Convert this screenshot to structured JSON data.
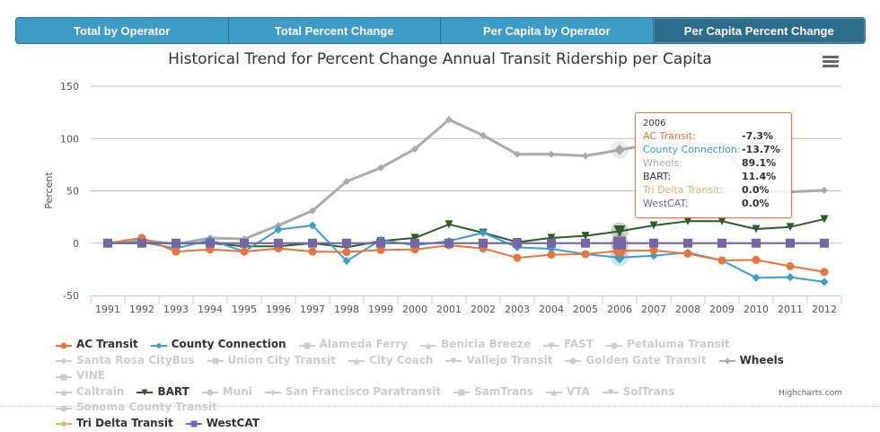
{
  "tabs": [
    {
      "label": "Total by Operator",
      "active": false
    },
    {
      "label": "Total Percent Change",
      "active": false
    },
    {
      "label": "Per Capita by Operator",
      "active": false
    },
    {
      "label": "Per Capita Percent Change",
      "active": true
    }
  ],
  "menu_icon": "hamburger-menu-icon",
  "credits": "Highcharts.com",
  "tooltip": {
    "header": "2006",
    "rows": [
      {
        "name": "AC Transit:",
        "value": "-7.3%",
        "color": "#e8743b"
      },
      {
        "name": "County Connection:",
        "value": "-13.7%",
        "color": "#3b9ed1"
      },
      {
        "name": "Wheels:",
        "value": "89.1%",
        "color": "#aaaaaa"
      },
      {
        "name": "BART:",
        "value": "11.4%",
        "color": "#333333"
      },
      {
        "name": "Tri Delta Transit:",
        "value": "0.0%",
        "color": "#d9b36c"
      },
      {
        "name": "WestCAT:",
        "value": "0.0%",
        "color": "#7366a6"
      }
    ]
  },
  "chart_data": {
    "type": "line",
    "title": "Historical Trend for Percent Change Annual Transit Ridership per Capita",
    "xlabel": "",
    "ylabel": "Percent",
    "ylim": [
      -50,
      150
    ],
    "yticks": [
      -50,
      0,
      50,
      100,
      150
    ],
    "grid": true,
    "legend_position": "bottom",
    "categories": [
      "1991",
      "1992",
      "1993",
      "1994",
      "1995",
      "1996",
      "1997",
      "1998",
      "1999",
      "2000",
      "2001",
      "2002",
      "2003",
      "2004",
      "2005",
      "2006",
      "2007",
      "2008",
      "2009",
      "2010",
      "2011",
      "2012"
    ],
    "highlighted_category": "2006",
    "series": [
      {
        "name": "AC Transit",
        "color": "#e8743b",
        "marker": "circle",
        "visible": true,
        "values": [
          0,
          5,
          -8,
          -6,
          -8,
          -5,
          -8,
          -8.5,
          -6.5,
          -6,
          -2,
          -5,
          -14,
          -11,
          -10.5,
          -7.3,
          -7,
          -10,
          -16.5,
          -16,
          -22,
          -27.5
        ]
      },
      {
        "name": "County Connection",
        "color": "#3b9ed1",
        "marker": "diamond",
        "visible": true,
        "values": [
          0,
          1,
          -5,
          3,
          -8,
          13,
          17,
          -17,
          3,
          -2,
          2,
          10,
          -4,
          -5.5,
          -10.5,
          -13.7,
          -12,
          -9,
          -16.5,
          -33,
          -32.5,
          -37
        ]
      },
      {
        "name": "Alameda Ferry",
        "color": "#cccccc",
        "marker": "square",
        "visible": false,
        "values": []
      },
      {
        "name": "Benicia Breeze",
        "color": "#cccccc",
        "marker": "triangle",
        "visible": false,
        "values": []
      },
      {
        "name": "FAST",
        "color": "#cccccc",
        "marker": "triangle-down",
        "visible": false,
        "values": []
      },
      {
        "name": "Petaluma Transit",
        "color": "#cccccc",
        "marker": "circle",
        "visible": false,
        "values": []
      },
      {
        "name": "Santa Rosa CityBus",
        "color": "#cccccc",
        "marker": "diamond",
        "visible": false,
        "values": []
      },
      {
        "name": "Union City Transit",
        "color": "#cccccc",
        "marker": "square",
        "visible": false,
        "values": []
      },
      {
        "name": "City Coach",
        "color": "#cccccc",
        "marker": "triangle",
        "visible": false,
        "values": []
      },
      {
        "name": "Vallejo Transit",
        "color": "#cccccc",
        "marker": "triangle-down",
        "visible": false,
        "values": []
      },
      {
        "name": "Golden Gate Transit",
        "color": "#cccccc",
        "marker": "circle",
        "visible": false,
        "values": []
      },
      {
        "name": "Wheels",
        "color": "#aaaaaa",
        "marker": "diamond",
        "visible": true,
        "line_width": 3,
        "values": [
          0,
          3,
          -1,
          5,
          4,
          17,
          31,
          59,
          72,
          90,
          118,
          103,
          85,
          85,
          83.5,
          89.1,
          95,
          96,
          95,
          50,
          49,
          50.5
        ]
      },
      {
        "name": "VINE",
        "color": "#cccccc",
        "marker": "square",
        "visible": false,
        "values": []
      },
      {
        "name": "Caltrain",
        "color": "#cccccc",
        "marker": "triangle",
        "visible": false,
        "values": []
      },
      {
        "name": "BART",
        "color": "#2f5a2a",
        "marker": "triangle-down",
        "visible": true,
        "values": [
          0,
          0,
          0,
          0,
          -3,
          -3,
          0,
          -4,
          2,
          5,
          18,
          10,
          1,
          5,
          7,
          11.4,
          17,
          21,
          21,
          13.5,
          15.5,
          23
        ]
      },
      {
        "name": "Muni",
        "color": "#cccccc",
        "marker": "circle",
        "visible": false,
        "values": []
      },
      {
        "name": "San Francisco Paratransit",
        "color": "#cccccc",
        "marker": "diamond",
        "visible": false,
        "values": []
      },
      {
        "name": "SamTrans",
        "color": "#cccccc",
        "marker": "square",
        "visible": false,
        "values": []
      },
      {
        "name": "VTA",
        "color": "#cccccc",
        "marker": "triangle",
        "visible": false,
        "values": []
      },
      {
        "name": "SolTrans",
        "color": "#cccccc",
        "marker": "triangle-down",
        "visible": false,
        "values": []
      },
      {
        "name": "Sonoma County Transit",
        "color": "#cccccc",
        "marker": "circle",
        "visible": false,
        "values": []
      },
      {
        "name": "Tri Delta Transit",
        "color": "#d9b36c",
        "marker": "diamond",
        "visible": true,
        "values": [
          0,
          0,
          0,
          0,
          0,
          0,
          0,
          0,
          0,
          0,
          0,
          0,
          0,
          0,
          0,
          0,
          0,
          0,
          0,
          0,
          0,
          0
        ]
      },
      {
        "name": "WestCAT",
        "color": "#7366a6",
        "marker": "square",
        "visible": true,
        "values": [
          0,
          0,
          0,
          0,
          0,
          0,
          0,
          0,
          0,
          0,
          0,
          0,
          0,
          0,
          0,
          0,
          0,
          0,
          0,
          0,
          0,
          0
        ]
      }
    ]
  }
}
